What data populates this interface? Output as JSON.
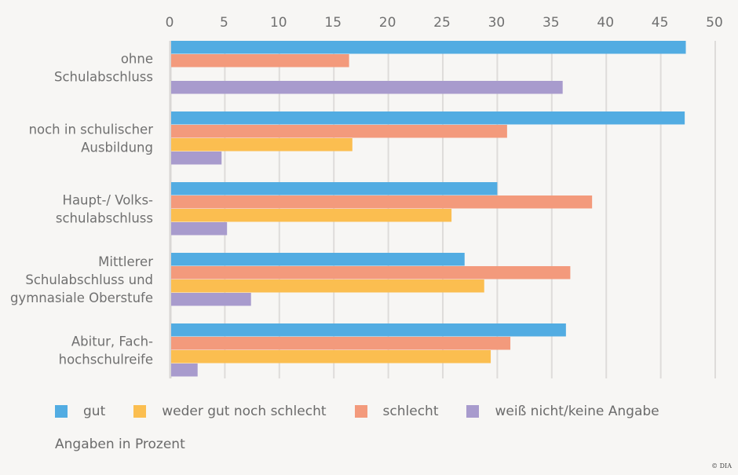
{
  "chart_data": {
    "type": "bar",
    "orientation": "horizontal",
    "title": "",
    "xlabel": "",
    "ylabel": "",
    "xlim": [
      0,
      50
    ],
    "xticks": [
      "0",
      "5",
      "10",
      "15",
      "20",
      "25",
      "30",
      "35",
      "40",
      "45",
      "50"
    ],
    "grid": true,
    "x_axis_position": "top",
    "categories": [
      [
        "ohne",
        "Schulabschluss"
      ],
      [
        "noch in schulischer",
        "Ausbildung"
      ],
      [
        "Haupt-/ Volks-",
        "schulabschluss"
      ],
      [
        "Mittlerer",
        "Schulabschluss und",
        "gymnasiale Oberstufe"
      ],
      [
        "Abitur, Fach-",
        "hochschulreife"
      ]
    ],
    "series": [
      {
        "name": "gut",
        "color": "#52ace2",
        "values": [
          47.3,
          47.2,
          30.0,
          27.0,
          36.3
        ]
      },
      {
        "name": "schlecht",
        "color": "#f39a7c",
        "values": [
          16.4,
          30.9,
          38.7,
          36.7,
          31.2
        ]
      },
      {
        "name": "weder gut noch schlecht",
        "color": "#fbbe50",
        "values": [
          null,
          16.7,
          25.8,
          28.8,
          29.4
        ]
      },
      {
        "name": "weiß nicht/keine Angabe",
        "color": "#a89bcd",
        "values": [
          36.0,
          4.7,
          5.2,
          7.4,
          2.5
        ]
      }
    ],
    "legend": {
      "position": "bottom-left",
      "order": [
        "gut",
        "weder gut noch schlecht",
        "schlecht",
        "weiß nicht/keine Angabe"
      ]
    },
    "note": "Angaben in Prozent",
    "credit": "© DIA"
  }
}
